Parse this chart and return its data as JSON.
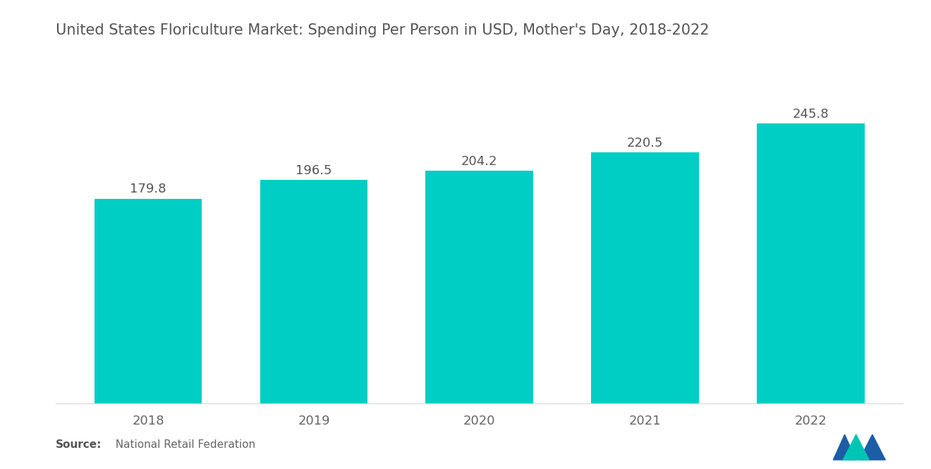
{
  "title": "United States Floriculture Market: Spending Per Person in USD, Mother's Day, 2018-2022",
  "categories": [
    "2018",
    "2019",
    "2020",
    "2021",
    "2022"
  ],
  "values": [
    179.8,
    196.5,
    204.2,
    220.5,
    245.8
  ],
  "bar_color": "#00CEC4",
  "background_color": "#ffffff",
  "title_fontsize": 15,
  "label_fontsize": 13,
  "tick_fontsize": 13,
  "source_bold": "Source:",
  "source_rest": "  National Retail Federation",
  "ylim": [
    0,
    280
  ],
  "bar_width": 0.65,
  "title_color": "#555555",
  "tick_color": "#666666",
  "value_color": "#555555"
}
